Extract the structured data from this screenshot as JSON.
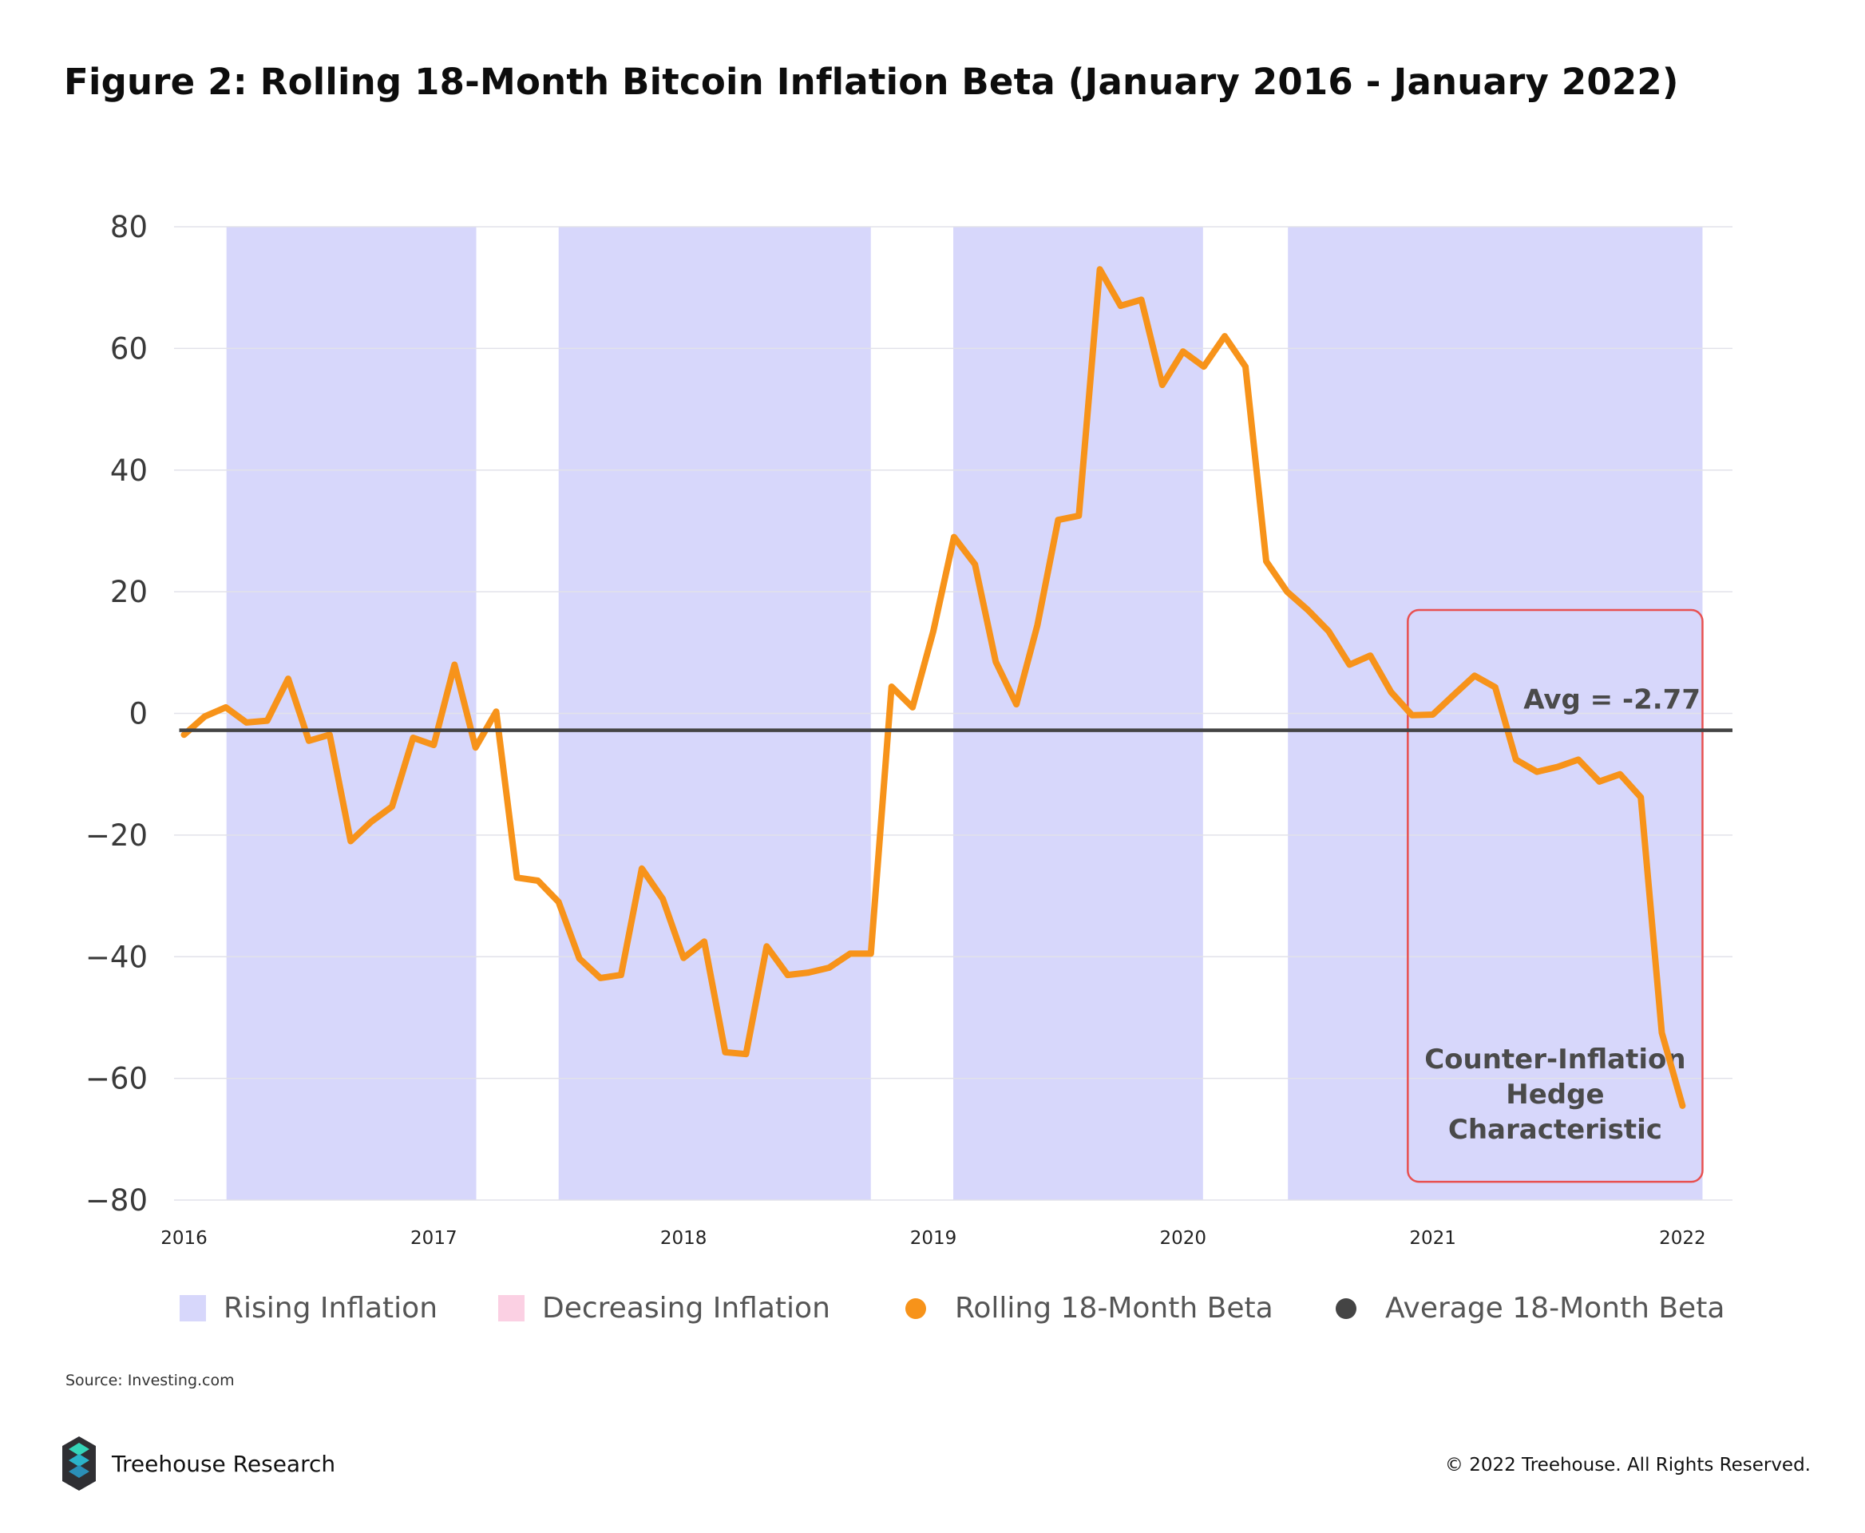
{
  "title": "Figure 2: Rolling 18-Month Bitcoin Inflation Beta (January 2016 - January 2022)",
  "chart_data": {
    "type": "line",
    "ylim": [
      -80,
      80
    ],
    "yticks": [
      80,
      60,
      40,
      20,
      0,
      -20,
      -40,
      -60,
      -80
    ],
    "xlim": [
      2015.96,
      2022.2
    ],
    "xticks": [
      {
        "label": "2016",
        "x": 2016.0
      },
      {
        "label": "2017",
        "x": 2017.0
      },
      {
        "label": "2018",
        "x": 2018.0
      },
      {
        "label": "2019",
        "x": 2019.0
      },
      {
        "label": "2020",
        "x": 2020.0
      },
      {
        "label": "2021",
        "x": 2021.0
      },
      {
        "label": "2022",
        "x": 2022.0
      }
    ],
    "regions": [
      {
        "type": "Rising Inflation",
        "start": 2016.17,
        "end": 2017.17
      },
      {
        "type": "Rising Inflation",
        "start": 2017.5,
        "end": 2018.75
      },
      {
        "type": "Rising Inflation",
        "start": 2019.08,
        "end": 2020.08
      },
      {
        "type": "Rising Inflation",
        "start": 2020.42,
        "end": 2022.08
      }
    ],
    "series": [
      {
        "name": "Rolling 18-Month Beta",
        "color": "#f7931a",
        "x": [
          2016.0,
          2016.083,
          2016.167,
          2016.25,
          2016.333,
          2016.417,
          2016.5,
          2016.583,
          2016.667,
          2016.75,
          2016.833,
          2016.917,
          2017.0,
          2017.083,
          2017.167,
          2017.25,
          2017.333,
          2017.417,
          2017.5,
          2017.583,
          2017.667,
          2017.75,
          2017.833,
          2017.917,
          2018.0,
          2018.083,
          2018.167,
          2018.25,
          2018.333,
          2018.417,
          2018.5,
          2018.583,
          2018.667,
          2018.75,
          2018.833,
          2018.917,
          2019.0,
          2019.083,
          2019.167,
          2019.25,
          2019.333,
          2019.417,
          2019.5,
          2019.583,
          2019.667,
          2019.75,
          2019.833,
          2019.917,
          2020.0,
          2020.083,
          2020.167,
          2020.25,
          2020.333,
          2020.417,
          2020.5,
          2020.583,
          2020.667,
          2020.75,
          2020.833,
          2020.917,
          2021.0,
          2021.083,
          2021.167,
          2021.25,
          2021.333,
          2021.417,
          2021.5,
          2021.583,
          2021.667,
          2021.75,
          2021.833,
          2021.917,
          2022.0
        ],
        "values": [
          -3.5,
          -0.5,
          1,
          -1.5,
          -1.2,
          5.7,
          -4.5,
          -3.5,
          -21,
          -17.8,
          -15.3,
          -4,
          -5.2,
          8,
          -5.6,
          0.3,
          -27,
          -27.5,
          -31,
          -40.3,
          -43.5,
          -43,
          -25.5,
          -30.5,
          -40.2,
          -37.5,
          -55.7,
          -56,
          -38.3,
          -43,
          -42.6,
          -41.8,
          -39.5,
          -39.5,
          4.4,
          1,
          13.5,
          29,
          24.5,
          8.5,
          1.5,
          14.5,
          31.8,
          32.5,
          73,
          67,
          68,
          54,
          59.5,
          57,
          62,
          57,
          25,
          20,
          17,
          13.5,
          8,
          9.5,
          3.5,
          -0.3,
          -0.2,
          3,
          6.2,
          4.3,
          -7.6,
          -9.6,
          -8.8,
          -7.6,
          -11.2,
          -10,
          -13.8,
          -52.5,
          -64.5
        ]
      },
      {
        "name": "Average 18-Month Beta",
        "color": "#444444",
        "value": -2.77
      }
    ],
    "annotations": {
      "avg_label": "Avg = -2.77",
      "box_text": [
        "Counter-Inflation",
        "Hedge",
        "Characteristic"
      ],
      "box_x_start": 2020.9,
      "box_x_end": 2022.08,
      "box_y_top": 17,
      "box_y_bottom": -77,
      "box_color": "#e85050"
    },
    "legend": [
      {
        "label": "Rising Inflation",
        "color": "#d7d7fb",
        "shape": "square"
      },
      {
        "label": "Decreasing Inflation",
        "color": "#fbd0e3",
        "shape": "square"
      },
      {
        "label": "Rolling 18-Month Beta",
        "color": "#f7931a",
        "shape": "circle"
      },
      {
        "label": "Average 18-Month Beta",
        "color": "#444444",
        "shape": "circle"
      }
    ],
    "rising_color": "#d7d7fb",
    "grid": true
  },
  "source": "Source: Investing.com",
  "brand": "Treehouse Research",
  "copyright": "© 2022 Treehouse. All Rights Reserved."
}
